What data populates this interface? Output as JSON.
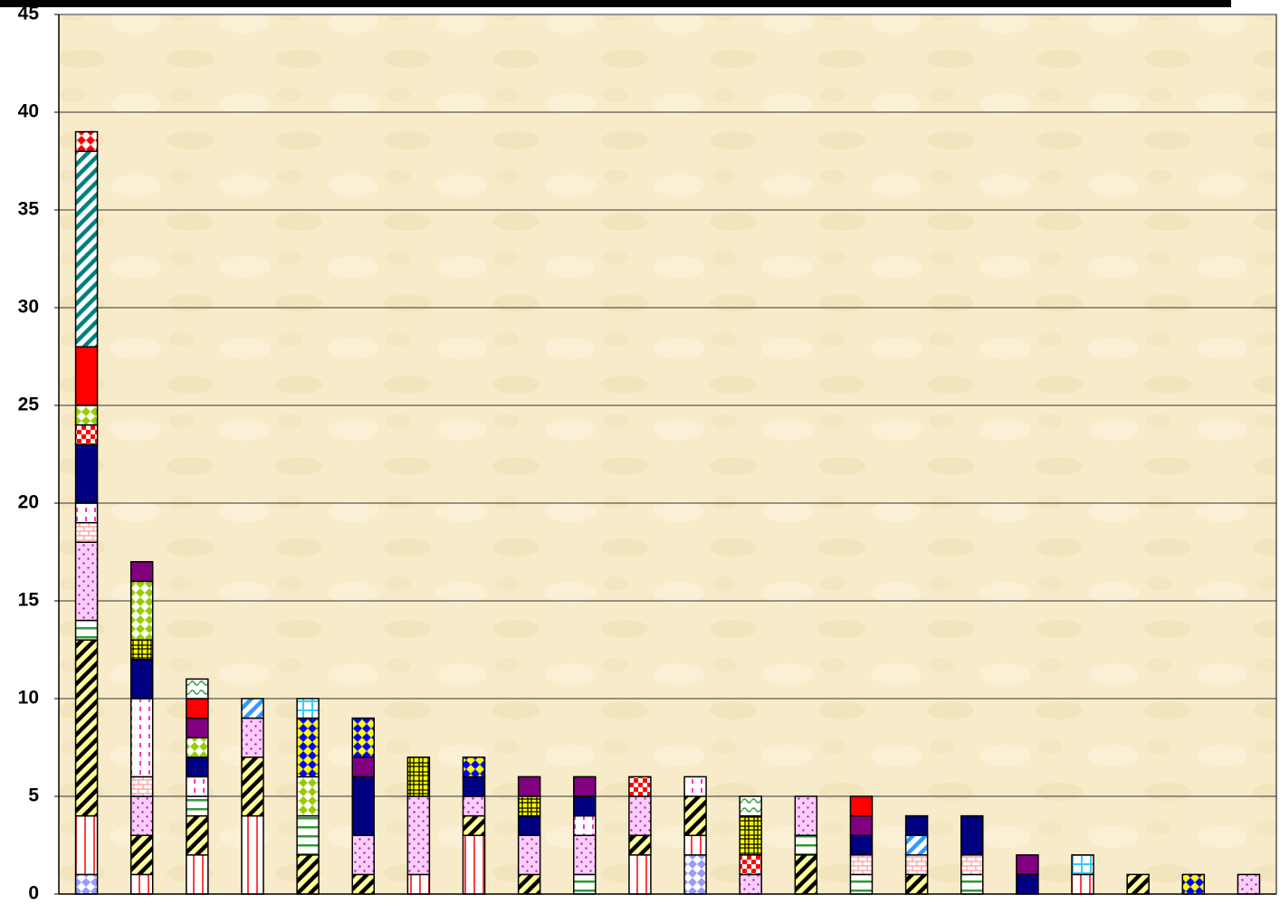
{
  "chart_data": {
    "type": "bar",
    "stacked": true,
    "categories": [
      null,
      null,
      null,
      null,
      null,
      null,
      null,
      null,
      null,
      null,
      null,
      null,
      null,
      null,
      null,
      null,
      null,
      null,
      null,
      null,
      null,
      null
    ],
    "ylim": [
      0,
      45
    ],
    "yticks": [
      0,
      5,
      10,
      15,
      20,
      25,
      30,
      35,
      40,
      45
    ],
    "grid": true,
    "series": [
      {
        "color": "#9999ff",
        "background": "#ffffff",
        "pattern": "diamond",
        "values": [
          1,
          0,
          0,
          0,
          0,
          0,
          0,
          0,
          0,
          0,
          0,
          2,
          0,
          0,
          0,
          0,
          0,
          0,
          0,
          0,
          0,
          0
        ]
      },
      {
        "color": "#ff4040",
        "background": "#ffffff",
        "pattern": "vstripe",
        "values": [
          3,
          1,
          2,
          4,
          0,
          0,
          1,
          3,
          0,
          0,
          2,
          1,
          0,
          0,
          0,
          0,
          0,
          0,
          1,
          0,
          0,
          0
        ]
      },
      {
        "color": "#000000",
        "background": "#ffff99",
        "pattern": "diag",
        "values": [
          9,
          2,
          2,
          3,
          2,
          1,
          0,
          1,
          1,
          0,
          1,
          2,
          0,
          2,
          0,
          1,
          0,
          0,
          0,
          1,
          0,
          0
        ]
      },
      {
        "color": "#339933",
        "background": "#ffffff",
        "pattern": "hstripe",
        "values": [
          1,
          0,
          1,
          0,
          2,
          0,
          0,
          0,
          0,
          1,
          0,
          0,
          0,
          1,
          1,
          0,
          1,
          0,
          0,
          0,
          0,
          0
        ]
      },
      {
        "color": "#993399",
        "background": "#ffccff",
        "pattern": "dots",
        "values": [
          4,
          2,
          0,
          2,
          0,
          2,
          4,
          1,
          2,
          2,
          2,
          0,
          1,
          2,
          0,
          0,
          0,
          0,
          0,
          0,
          0,
          1
        ]
      },
      {
        "color": "#ff9999",
        "background": "#ffffff",
        "pattern": "brick",
        "values": [
          1,
          1,
          0,
          0,
          0,
          0,
          0,
          0,
          0,
          0,
          0,
          0,
          0,
          0,
          1,
          1,
          1,
          0,
          0,
          0,
          0,
          0
        ]
      },
      {
        "color": "#ff33cc",
        "background": "#ffffff",
        "pattern": "dash",
        "values": [
          1,
          4,
          1,
          0,
          0,
          0,
          0,
          0,
          0,
          1,
          0,
          1,
          0,
          0,
          0,
          0,
          0,
          0,
          0,
          0,
          0,
          0
        ]
      },
      {
        "color": "#3399ff",
        "background": "#ffffff",
        "pattern": "diag",
        "values": [
          0,
          0,
          0,
          1,
          0,
          0,
          0,
          0,
          0,
          0,
          0,
          0,
          0,
          0,
          0,
          1,
          0,
          0,
          0,
          0,
          0,
          0
        ]
      },
      {
        "color": "#000080",
        "background": "#000080",
        "pattern": "solid",
        "values": [
          3,
          2,
          1,
          0,
          0,
          3,
          0,
          1,
          1,
          1,
          0,
          0,
          0,
          0,
          1,
          1,
          2,
          1,
          0,
          0,
          0,
          0
        ]
      },
      {
        "color": "#ff0000",
        "background": "#ffffff",
        "pattern": "checker",
        "values": [
          1,
          0,
          0,
          0,
          0,
          0,
          0,
          0,
          0,
          0,
          1,
          0,
          1,
          0,
          0,
          0,
          0,
          0,
          0,
          0,
          0,
          0
        ]
      },
      {
        "color": "#000000",
        "background": "#ffff00",
        "pattern": "grid",
        "values": [
          0,
          1,
          0,
          0,
          0,
          0,
          2,
          0,
          1,
          0,
          0,
          0,
          2,
          0,
          0,
          0,
          0,
          0,
          0,
          0,
          0,
          0
        ]
      },
      {
        "color": "#99cc00",
        "background": "#ffffff",
        "pattern": "diamond",
        "values": [
          1,
          3,
          1,
          0,
          2,
          0,
          0,
          0,
          0,
          0,
          0,
          0,
          0,
          0,
          0,
          0,
          0,
          0,
          0,
          0,
          0,
          0
        ]
      },
      {
        "color": "#800080",
        "background": "#800080",
        "pattern": "solid",
        "values": [
          0,
          1,
          1,
          0,
          0,
          1,
          0,
          0,
          1,
          1,
          0,
          0,
          0,
          0,
          1,
          0,
          0,
          1,
          0,
          0,
          0,
          0
        ]
      },
      {
        "color": "#0000ff",
        "background": "#ffff00",
        "pattern": "diamond",
        "values": [
          0,
          0,
          0,
          0,
          3,
          2,
          0,
          1,
          0,
          0,
          0,
          0,
          0,
          0,
          0,
          0,
          0,
          0,
          0,
          0,
          1,
          0
        ]
      },
      {
        "color": "#ff0000",
        "background": "#ff0000",
        "pattern": "solid",
        "values": [
          3,
          0,
          1,
          0,
          0,
          0,
          0,
          0,
          0,
          0,
          0,
          0,
          0,
          0,
          1,
          0,
          0,
          0,
          0,
          0,
          0,
          0
        ]
      },
      {
        "color": "#339933",
        "background": "#ffffff",
        "pattern": "wave",
        "values": [
          0,
          0,
          1,
          0,
          0,
          0,
          0,
          0,
          0,
          0,
          0,
          0,
          1,
          0,
          0,
          0,
          0,
          0,
          0,
          0,
          0,
          0
        ]
      },
      {
        "color": "#008080",
        "background": "#ffffff",
        "pattern": "diag",
        "values": [
          10,
          0,
          0,
          0,
          0,
          0,
          0,
          0,
          0,
          0,
          0,
          0,
          0,
          0,
          0,
          0,
          0,
          0,
          0,
          0,
          0,
          0
        ]
      },
      {
        "color": "#ff0000",
        "background": "#ffffff",
        "pattern": "bowtie",
        "values": [
          1,
          0,
          0,
          0,
          0,
          0,
          0,
          0,
          0,
          0,
          0,
          0,
          0,
          0,
          0,
          0,
          0,
          0,
          0,
          0,
          0,
          0
        ]
      },
      {
        "color": "#33ccff",
        "background": "#ffffff",
        "pattern": "cross",
        "values": [
          0,
          0,
          0,
          0,
          1,
          0,
          0,
          0,
          0,
          0,
          0,
          0,
          0,
          0,
          0,
          0,
          0,
          0,
          1,
          0,
          0,
          0
        ]
      }
    ]
  }
}
